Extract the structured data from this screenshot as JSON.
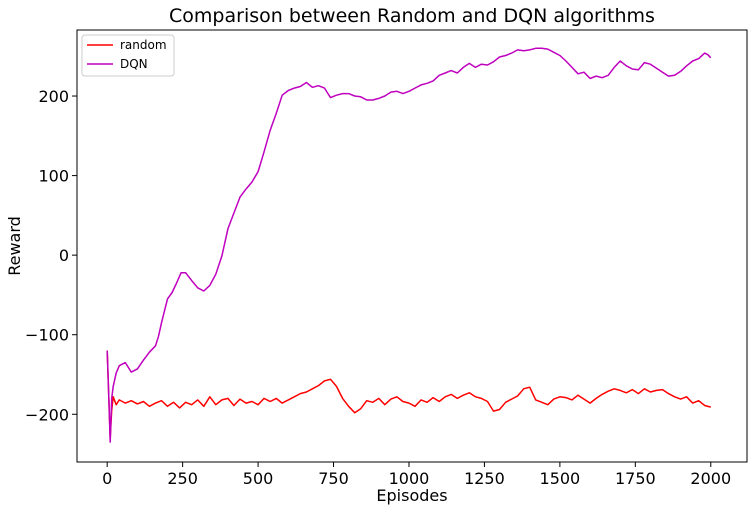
{
  "chart_data": {
    "type": "line",
    "title": "Comparison between Random and DQN algorithms",
    "xlabel": "Episodes",
    "ylabel": "Reward",
    "xlim": [
      -100,
      2120
    ],
    "ylim": [
      -260,
      283
    ],
    "xticks": [
      0,
      250,
      500,
      750,
      1000,
      1250,
      1500,
      1750,
      2000
    ],
    "yticks": [
      -200,
      -100,
      0,
      100,
      200
    ],
    "xtick_labels": [
      "0",
      "250",
      "500",
      "750",
      "1000",
      "1250",
      "1500",
      "1750",
      "2000"
    ],
    "ytick_labels": [
      "−200",
      "−100",
      "0",
      "100",
      "200"
    ],
    "grid": false,
    "legend_position": "top-left",
    "series": [
      {
        "name": "random",
        "color": "#ff0000",
        "points": [
          [
            0,
            -120
          ],
          [
            5,
            -175
          ],
          [
            10,
            -230
          ],
          [
            15,
            -195
          ],
          [
            20,
            -178
          ],
          [
            30,
            -188
          ],
          [
            40,
            -182
          ],
          [
            60,
            -186
          ],
          [
            80,
            -183
          ],
          [
            100,
            -187
          ],
          [
            120,
            -184
          ],
          [
            140,
            -190
          ],
          [
            160,
            -186
          ],
          [
            180,
            -183
          ],
          [
            200,
            -190
          ],
          [
            220,
            -185
          ],
          [
            240,
            -192
          ],
          [
            260,
            -185
          ],
          [
            280,
            -188
          ],
          [
            300,
            -182
          ],
          [
            320,
            -190
          ],
          [
            340,
            -178
          ],
          [
            360,
            -188
          ],
          [
            380,
            -182
          ],
          [
            400,
            -180
          ],
          [
            420,
            -189
          ],
          [
            440,
            -181
          ],
          [
            460,
            -186
          ],
          [
            480,
            -184
          ],
          [
            500,
            -188
          ],
          [
            520,
            -180
          ],
          [
            540,
            -184
          ],
          [
            560,
            -180
          ],
          [
            580,
            -186
          ],
          [
            600,
            -182
          ],
          [
            620,
            -178
          ],
          [
            640,
            -174
          ],
          [
            660,
            -172
          ],
          [
            680,
            -168
          ],
          [
            700,
            -164
          ],
          [
            720,
            -158
          ],
          [
            740,
            -156
          ],
          [
            760,
            -165
          ],
          [
            780,
            -180
          ],
          [
            800,
            -190
          ],
          [
            820,
            -198
          ],
          [
            840,
            -193
          ],
          [
            860,
            -183
          ],
          [
            880,
            -185
          ],
          [
            900,
            -180
          ],
          [
            920,
            -188
          ],
          [
            940,
            -181
          ],
          [
            960,
            -178
          ],
          [
            980,
            -184
          ],
          [
            1000,
            -186
          ],
          [
            1020,
            -190
          ],
          [
            1040,
            -182
          ],
          [
            1060,
            -185
          ],
          [
            1080,
            -179
          ],
          [
            1100,
            -184
          ],
          [
            1120,
            -178
          ],
          [
            1140,
            -175
          ],
          [
            1160,
            -180
          ],
          [
            1180,
            -176
          ],
          [
            1200,
            -173
          ],
          [
            1220,
            -178
          ],
          [
            1240,
            -180
          ],
          [
            1260,
            -184
          ],
          [
            1280,
            -196
          ],
          [
            1300,
            -194
          ],
          [
            1320,
            -185
          ],
          [
            1340,
            -181
          ],
          [
            1360,
            -177
          ],
          [
            1380,
            -168
          ],
          [
            1400,
            -166
          ],
          [
            1420,
            -182
          ],
          [
            1440,
            -185
          ],
          [
            1460,
            -188
          ],
          [
            1480,
            -181
          ],
          [
            1500,
            -178
          ],
          [
            1520,
            -179
          ],
          [
            1540,
            -182
          ],
          [
            1560,
            -176
          ],
          [
            1580,
            -181
          ],
          [
            1600,
            -186
          ],
          [
            1620,
            -180
          ],
          [
            1640,
            -175
          ],
          [
            1660,
            -171
          ],
          [
            1680,
            -168
          ],
          [
            1700,
            -170
          ],
          [
            1720,
            -173
          ],
          [
            1740,
            -169
          ],
          [
            1760,
            -174
          ],
          [
            1780,
            -168
          ],
          [
            1800,
            -172
          ],
          [
            1820,
            -170
          ],
          [
            1840,
            -169
          ],
          [
            1860,
            -174
          ],
          [
            1880,
            -178
          ],
          [
            1900,
            -181
          ],
          [
            1920,
            -178
          ],
          [
            1940,
            -186
          ],
          [
            1960,
            -183
          ],
          [
            1980,
            -189
          ],
          [
            2000,
            -191
          ]
        ]
      },
      {
        "name": "DQN",
        "color": "#bf00bf",
        "points": [
          [
            0,
            -120
          ],
          [
            5,
            -175
          ],
          [
            10,
            -235
          ],
          [
            15,
            -180
          ],
          [
            20,
            -165
          ],
          [
            30,
            -148
          ],
          [
            40,
            -139
          ],
          [
            60,
            -135
          ],
          [
            80,
            -147
          ],
          [
            100,
            -143
          ],
          [
            120,
            -132
          ],
          [
            140,
            -122
          ],
          [
            160,
            -114
          ],
          [
            170,
            -102
          ],
          [
            180,
            -85
          ],
          [
            190,
            -70
          ],
          [
            200,
            -55
          ],
          [
            215,
            -47
          ],
          [
            230,
            -35
          ],
          [
            245,
            -22
          ],
          [
            260,
            -22
          ],
          [
            280,
            -32
          ],
          [
            300,
            -41
          ],
          [
            320,
            -45
          ],
          [
            340,
            -38
          ],
          [
            360,
            -24
          ],
          [
            380,
            -1
          ],
          [
            400,
            33
          ],
          [
            420,
            53
          ],
          [
            440,
            73
          ],
          [
            460,
            83
          ],
          [
            480,
            92
          ],
          [
            500,
            105
          ],
          [
            520,
            130
          ],
          [
            540,
            157
          ],
          [
            560,
            178
          ],
          [
            580,
            201
          ],
          [
            600,
            207
          ],
          [
            620,
            210
          ],
          [
            640,
            212
          ],
          [
            660,
            217
          ],
          [
            680,
            211
          ],
          [
            700,
            213
          ],
          [
            720,
            210
          ],
          [
            740,
            198
          ],
          [
            760,
            201
          ],
          [
            780,
            203
          ],
          [
            800,
            203
          ],
          [
            820,
            200
          ],
          [
            840,
            199
          ],
          [
            860,
            195
          ],
          [
            880,
            195
          ],
          [
            900,
            197
          ],
          [
            920,
            200
          ],
          [
            940,
            205
          ],
          [
            960,
            206
          ],
          [
            980,
            203
          ],
          [
            1000,
            206
          ],
          [
            1020,
            210
          ],
          [
            1040,
            214
          ],
          [
            1060,
            216
          ],
          [
            1080,
            219
          ],
          [
            1100,
            226
          ],
          [
            1120,
            229
          ],
          [
            1140,
            232
          ],
          [
            1160,
            229
          ],
          [
            1180,
            236
          ],
          [
            1200,
            241
          ],
          [
            1220,
            236
          ],
          [
            1240,
            240
          ],
          [
            1260,
            239
          ],
          [
            1280,
            243
          ],
          [
            1300,
            249
          ],
          [
            1320,
            251
          ],
          [
            1340,
            254
          ],
          [
            1360,
            258
          ],
          [
            1380,
            257
          ],
          [
            1400,
            258
          ],
          [
            1420,
            260
          ],
          [
            1440,
            260
          ],
          [
            1460,
            259
          ],
          [
            1480,
            255
          ],
          [
            1500,
            251
          ],
          [
            1520,
            244
          ],
          [
            1540,
            236
          ],
          [
            1560,
            228
          ],
          [
            1580,
            230
          ],
          [
            1600,
            222
          ],
          [
            1620,
            225
          ],
          [
            1640,
            223
          ],
          [
            1660,
            226
          ],
          [
            1680,
            236
          ],
          [
            1700,
            244
          ],
          [
            1720,
            238
          ],
          [
            1740,
            234
          ],
          [
            1760,
            233
          ],
          [
            1780,
            242
          ],
          [
            1800,
            240
          ],
          [
            1820,
            235
          ],
          [
            1840,
            230
          ],
          [
            1860,
            225
          ],
          [
            1880,
            226
          ],
          [
            1900,
            231
          ],
          [
            1920,
            238
          ],
          [
            1940,
            244
          ],
          [
            1960,
            247
          ],
          [
            1980,
            254
          ],
          [
            1990,
            252
          ],
          [
            2000,
            248
          ]
        ]
      }
    ]
  }
}
